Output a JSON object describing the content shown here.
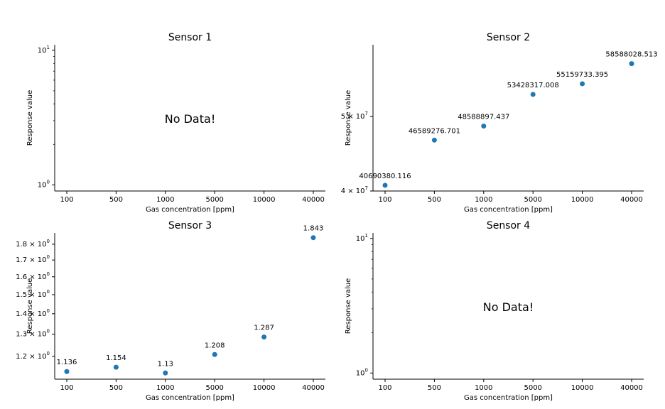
{
  "chart_data": [
    {
      "type": "scatter",
      "title": "Sensor 1",
      "xlabel": "Gas concentration [ppm]",
      "ylabel": "Response value",
      "categories": [
        "100",
        "500",
        "1000",
        "5000",
        "10000",
        "40000"
      ],
      "yscale": "log",
      "ylim": [
        0.9,
        11
      ],
      "yticks": [
        {
          "value": 1,
          "base": "10",
          "exp": "0"
        },
        {
          "value": 10,
          "base": "10",
          "exp": "1"
        }
      ],
      "values": [],
      "labels": [],
      "no_data": "No Data!",
      "grid": false,
      "color": "#1f77b4"
    },
    {
      "type": "scatter",
      "title": "Sensor 2",
      "xlabel": "Gas concentration [ppm]",
      "ylabel": "Response value",
      "categories": [
        "100",
        "500",
        "1000",
        "5000",
        "10000",
        "40000"
      ],
      "yscale": "log",
      "ylim": [
        40000000,
        62000000
      ],
      "yticks": [
        {
          "value": 40000000,
          "base": "4 × 10",
          "exp": "7"
        },
        {
          "value": 50000000,
          "base": "5 × 10",
          "exp": "7"
        }
      ],
      "values": [
        40690380.116,
        46589276.701,
        48588897.437,
        53428317.008,
        55159733.395,
        58588028.513
      ],
      "labels": [
        "40690380.116",
        "46589276.701",
        "48588897.437",
        "53428317.008",
        "55159733.395",
        "58588028.513"
      ],
      "no_data": "",
      "grid": false,
      "color": "#1f77b4"
    },
    {
      "type": "scatter",
      "title": "Sensor 3",
      "xlabel": "Gas concentration [ppm]",
      "ylabel": "Response value",
      "categories": [
        "100",
        "500",
        "1000",
        "5000",
        "10000",
        "40000"
      ],
      "yscale": "log",
      "ylim": [
        1.105,
        1.875
      ],
      "yticks": [
        {
          "value": 1.2,
          "base": "1.2 × 10",
          "exp": "0"
        },
        {
          "value": 1.3,
          "base": "1.3 × 10",
          "exp": "0"
        },
        {
          "value": 1.4,
          "base": "1.4 × 10",
          "exp": "0"
        },
        {
          "value": 1.5,
          "base": "1.5 × 10",
          "exp": "0"
        },
        {
          "value": 1.6,
          "base": "1.6 × 10",
          "exp": "0"
        },
        {
          "value": 1.7,
          "base": "1.7 × 10",
          "exp": "0"
        },
        {
          "value": 1.8,
          "base": "1.8 × 10",
          "exp": "0"
        }
      ],
      "values": [
        1.136,
        1.154,
        1.13,
        1.208,
        1.287,
        1.843
      ],
      "labels": [
        "1.136",
        "1.154",
        "1.13",
        "1.208",
        "1.287",
        "1.843"
      ],
      "no_data": "",
      "grid": false,
      "color": "#1f77b4"
    },
    {
      "type": "scatter",
      "title": "Sensor 4",
      "xlabel": "Gas concentration [ppm]",
      "ylabel": "Response value",
      "categories": [
        "100",
        "500",
        "1000",
        "5000",
        "10000",
        "40000"
      ],
      "yscale": "log",
      "ylim": [
        0.9,
        11
      ],
      "yticks": [
        {
          "value": 1,
          "base": "10",
          "exp": "0"
        },
        {
          "value": 10,
          "base": "10",
          "exp": "1"
        }
      ],
      "values": [],
      "labels": [],
      "no_data": "No Data!",
      "grid": false,
      "color": "#1f77b4"
    }
  ]
}
